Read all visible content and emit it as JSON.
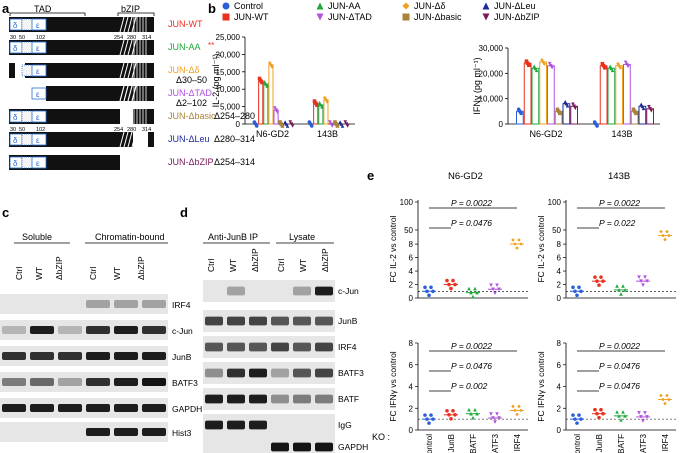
{
  "panels": {
    "a": "a",
    "b": "b",
    "c": "c",
    "d": "d",
    "e": "e"
  },
  "colors": {
    "control": "#2b5fd9",
    "wt": "#e8321e",
    "aa": "#1ea83c",
    "delta": "#f0a020",
    "dtad": "#b050e0",
    "dbasic": "#a8843a",
    "dleu": "#1a2a9a",
    "dbzip": "#7a1a5a",
    "blot_dark": "#1a1a1a",
    "blot_mid": "#555555"
  },
  "panel_a": {
    "tad_label": "TAD",
    "bzip_label": "bZIP",
    "constructs": [
      {
        "name": "JUN-WT",
        "extra": "",
        "color": "#e8321e"
      },
      {
        "name": "JUN-AA",
        "extra": "**",
        "color": "#1ea83c"
      },
      {
        "name": "JUN-Δδ",
        "extra": "Δ30–50",
        "color": "#f0a020"
      },
      {
        "name": "JUN-ΔTAD",
        "extra": "Δ2–102",
        "color": "#b050e0"
      },
      {
        "name": "JUN-Δbasic",
        "extra": "Δ254–280",
        "color": "#a8843a"
      },
      {
        "name": "JUN-ΔLeu",
        "extra": "Δ280–314",
        "color": "#1a2a9a"
      },
      {
        "name": "JUN-ΔbZIP",
        "extra": "Δ254–314",
        "color": "#7a1a5a"
      }
    ],
    "pos_ticks": [
      "30",
      "50",
      "102",
      "254",
      "280",
      "314"
    ],
    "delta_glyph": "δ",
    "eps_glyph": "ε"
  },
  "panel_b": {
    "legend": [
      {
        "name": "Control",
        "color": "#2b5fd9",
        "marker": "circle"
      },
      {
        "name": "JUN-AA",
        "color": "#1ea83c",
        "marker": "triangle"
      },
      {
        "name": "JUN-Δδ",
        "color": "#f0a020",
        "marker": "diamond"
      },
      {
        "name": "JUN-ΔLeu",
        "color": "#1a2a9a",
        "marker": "triangle"
      },
      {
        "name": "JUN-WT",
        "color": "#e8321e",
        "marker": "square"
      },
      {
        "name": "JUN-ΔTAD",
        "color": "#b050e0",
        "marker": "tri-down"
      },
      {
        "name": "JUN-Δbasic",
        "color": "#a8843a",
        "marker": "square"
      },
      {
        "name": "JUN-ΔbZIP",
        "color": "#7a1a5a",
        "marker": "tri-down"
      }
    ]
  },
  "chart_data": [
    {
      "type": "bar",
      "ylabel": "IL-2 (pg ml⁻¹)",
      "ylim": [
        0,
        25000
      ],
      "yticks": [
        "0",
        "5,000",
        "10,000",
        "15,000",
        "20,000",
        "25,000"
      ],
      "categories": [
        "N6-GD2",
        "143B"
      ],
      "series": [
        {
          "name": "Control",
          "values": [
            0,
            0
          ]
        },
        {
          "name": "JUN-WT",
          "values": [
            12500,
            6000
          ]
        },
        {
          "name": "JUN-AA",
          "values": [
            11500,
            5500
          ]
        },
        {
          "name": "JUN-Δδ",
          "values": [
            17000,
            7000
          ]
        },
        {
          "name": "JUN-ΔTAD",
          "values": [
            4000,
            0
          ]
        },
        {
          "name": "JUN-Δbasic",
          "values": [
            0,
            0
          ]
        },
        {
          "name": "JUN-ΔLeu",
          "values": [
            0,
            0
          ]
        },
        {
          "name": "JUN-ΔbZIP",
          "values": [
            0,
            0
          ]
        }
      ]
    },
    {
      "type": "bar",
      "ylabel": "IFNγ (pg ml⁻¹)",
      "ylim": [
        0,
        30000
      ],
      "yticks": [
        "0",
        "10,000",
        "20,000",
        "30,000"
      ],
      "categories": [
        "N6-GD2",
        "143B"
      ],
      "series": [
        {
          "name": "Control",
          "values": [
            5000,
            0
          ]
        },
        {
          "name": "JUN-WT",
          "values": [
            24000,
            23000
          ]
        },
        {
          "name": "JUN-AA",
          "values": [
            22000,
            22000
          ]
        },
        {
          "name": "JUN-Δδ",
          "values": [
            24500,
            23000
          ]
        },
        {
          "name": "JUN-ΔTAD",
          "values": [
            23000,
            23500
          ]
        },
        {
          "name": "JUN-Δbasic",
          "values": [
            5000,
            5000
          ]
        },
        {
          "name": "JUN-ΔLeu",
          "values": [
            8000,
            7000
          ]
        },
        {
          "name": "JUN-ΔbZIP",
          "values": [
            7000,
            6000
          ]
        }
      ]
    },
    {
      "type": "scatter",
      "title": "N6-GD2",
      "ylabel": "FC IL-2 vs control",
      "ylim": [
        0,
        8
      ],
      "ylim_top": [
        10,
        100
      ],
      "yticks": [
        "0",
        "2",
        "4",
        "6",
        "8"
      ],
      "yticks_top": [
        "50",
        "100"
      ],
      "categories": [
        "Control",
        "JunB",
        "BATF",
        "BATF3",
        "IRF4"
      ],
      "means": [
        1,
        2,
        0.8,
        1.3,
        25
      ],
      "pvalues": [
        "P = 0.0022",
        "P = 0.0476"
      ]
    },
    {
      "type": "scatter",
      "title": "143B",
      "ylabel": "FC IL-2 vs control",
      "ylim": [
        0,
        8
      ],
      "ylim_top": [
        10,
        100
      ],
      "yticks": [
        "0",
        "2",
        "4",
        "6",
        "8"
      ],
      "yticks_top": [
        "50",
        "100"
      ],
      "categories": [
        "Control",
        "JunB",
        "BATF",
        "BATF3",
        "IRF4"
      ],
      "means": [
        1,
        2.5,
        1.2,
        2.5,
        40
      ],
      "pvalues": [
        "P = 0.0022",
        "P = 0.022"
      ]
    },
    {
      "type": "scatter",
      "ylabel": "FC IFNγ vs control",
      "ylim": [
        0,
        8
      ],
      "yticks": [
        "0",
        "2",
        "4",
        "6",
        "8"
      ],
      "categories": [
        "Control",
        "JunB",
        "BATF",
        "BATF3",
        "IRF4"
      ],
      "means": [
        1,
        1.4,
        1.5,
        1.1,
        1.8
      ],
      "pvalues": [
        "P = 0.0022",
        "P = 0.0476",
        "P = 0.002"
      ]
    },
    {
      "type": "scatter",
      "ylabel": "FC IFNγ vs control",
      "ylim": [
        0,
        8
      ],
      "yticks": [
        "0",
        "2",
        "4",
        "6",
        "8"
      ],
      "categories": [
        "Control",
        "JunB",
        "BATF",
        "BATF3",
        "IRF4"
      ],
      "means": [
        1,
        1.5,
        1.3,
        1.2,
        2.8
      ],
      "pvalues": [
        "P = 0.0022",
        "P = 0.0476",
        "P = 0.0476"
      ]
    }
  ],
  "panel_b_groups": [
    "N6-GD2",
    "143B"
  ],
  "panel_c": {
    "headers": [
      "Soluble",
      "Chromatin-bound"
    ],
    "lanes": [
      "Ctrl",
      "WT",
      "ΔbZIP",
      "Ctrl",
      "WT",
      "ΔbZIP"
    ],
    "rows": [
      "IRF4",
      "c-Jun",
      "JunB",
      "BATF3",
      "GAPDH",
      "Hist3"
    ]
  },
  "panel_d": {
    "headers": [
      "Anti-JunB IP",
      "Lysate"
    ],
    "lanes": [
      "Ctrl",
      "WT",
      "ΔbZIP",
      "Ctrl",
      "WT",
      "ΔbZIP"
    ],
    "rows": [
      "c-Jun",
      "JunB",
      "IRF4",
      "BATF3",
      "BATF",
      "IgG",
      "GAPDH"
    ]
  },
  "panel_e": {
    "ko_label": "KO :",
    "titles": [
      "N6-GD2",
      "143B"
    ],
    "xcats": [
      "Control",
      "JunB",
      "BATF",
      "BATF3",
      "IRF4"
    ]
  }
}
